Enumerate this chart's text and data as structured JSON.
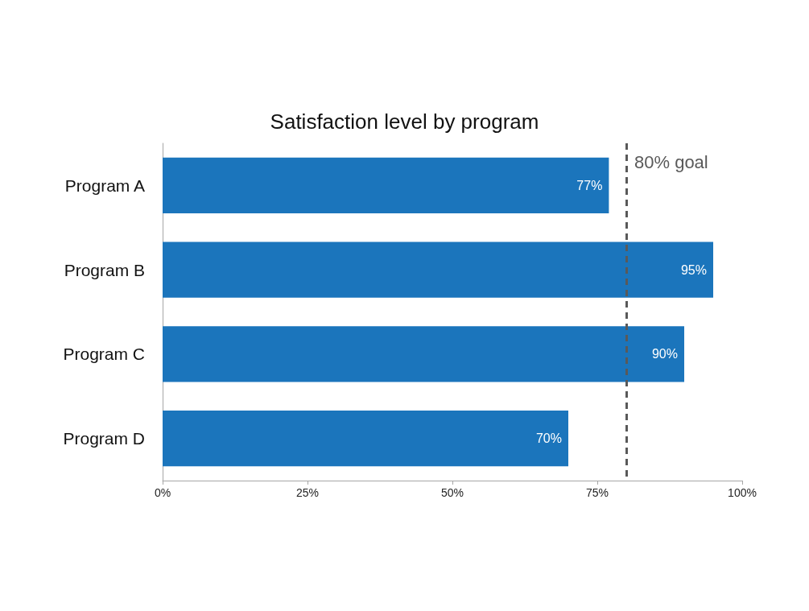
{
  "chart_data": {
    "type": "bar",
    "orientation": "horizontal",
    "title": "Satisfaction level by program",
    "categories": [
      "Program A",
      "Program B",
      "Program C",
      "Program D"
    ],
    "values": [
      77,
      95,
      90,
      70
    ],
    "color": "#1b75bc",
    "value_labels": [
      "77%",
      "95%",
      "90%",
      "70%"
    ],
    "xlim": [
      0,
      100
    ],
    "xticks": [
      {
        "value": 0,
        "label": "0%"
      },
      {
        "value": 25,
        "label": "25%"
      },
      {
        "value": 50,
        "label": "50%"
      },
      {
        "value": 75,
        "label": "75%"
      },
      {
        "value": 100,
        "label": "100%"
      }
    ],
    "ref_lines": [
      {
        "axis": "x",
        "value": 80,
        "label": "80% goal",
        "color": "#595959",
        "line_style": "dashed"
      }
    ],
    "grid": false
  }
}
